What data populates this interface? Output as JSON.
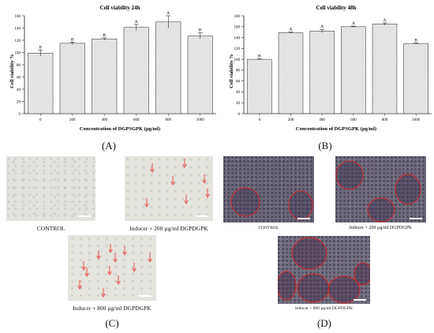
{
  "chart_data": [
    {
      "type": "bar",
      "title": "Cell viability 24h",
      "xlabel": "Concentration of DGPSGPK (µg/ml)",
      "ylabel": "Cell viability %",
      "categories": [
        "0",
        "200",
        "400",
        "600",
        "800",
        "1000"
      ],
      "values": [
        99,
        115,
        122,
        141,
        150,
        127
      ],
      "errors": [
        5,
        2,
        2,
        5,
        10,
        5
      ],
      "letters": [
        "B",
        "B",
        "B",
        "A",
        "A",
        "B"
      ],
      "ylim": [
        0,
        160
      ],
      "yticks": [
        0,
        20,
        40,
        60,
        80,
        100,
        120,
        140,
        160
      ],
      "grid": false
    },
    {
      "type": "bar",
      "title": "Cell viability 48h",
      "xlabel": "Concentration of DGPSGPK (µg/ml)",
      "ylabel": "Cell viability %",
      "categories": [
        "0",
        "200",
        "400",
        "600",
        "800",
        "1000"
      ],
      "values": [
        100,
        149,
        152,
        160,
        165,
        129
      ],
      "errors": [
        1,
        1,
        3,
        1,
        2,
        1
      ],
      "letters": [
        "B",
        "A",
        "A",
        "A",
        "A",
        "B"
      ],
      "ylim": [
        0,
        180
      ],
      "yticks": [
        0,
        20,
        40,
        60,
        80,
        100,
        120,
        140,
        160,
        180
      ],
      "grid": false
    }
  ],
  "panels": {
    "a": "(A)",
    "b": "(B)",
    "c": "(C)",
    "d": "(D)"
  },
  "captions": {
    "c_control": "CONTROL",
    "c_200": "Inducer + 200 µg/ml DGPDGPK",
    "c_800": "Inducer + 800 µg/ml DGPDGPK",
    "d_control": "CONTROL",
    "d_200": "Inducer + 200 µg/ml DGPDGPK",
    "d_800": "Inducer + 800 µg/ml DGPDGPK"
  },
  "colors": {
    "bar_fill": "#e6e6e6",
    "bar_stroke": "#444444",
    "arrow": "#e8504a",
    "circle": "#d42a2a",
    "micro_light": "#e2e1dc",
    "micro_stained": "#5e5a6e"
  }
}
